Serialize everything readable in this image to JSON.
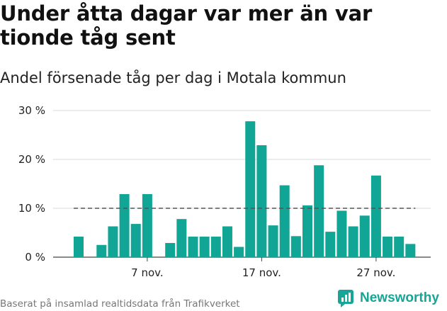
{
  "title": "Under åtta dagar var mer än var tionde tåg sent",
  "subtitle": "Andel försenade tåg per dag i Motala kommun",
  "footer": "Baserat på insamlad realtidsdata från Trafikverket",
  "brand": {
    "name": "Newsworthy",
    "color": "#16a596"
  },
  "chart_data": {
    "type": "bar",
    "x": [
      "1 nov.",
      "2 nov.",
      "3 nov.",
      "4 nov.",
      "5 nov.",
      "6 nov.",
      "7 nov.",
      "8 nov.",
      "9 nov.",
      "10 nov.",
      "11 nov.",
      "12 nov.",
      "13 nov.",
      "14 nov.",
      "15 nov.",
      "16 nov.",
      "17 nov.",
      "18 nov.",
      "19 nov.",
      "20 nov.",
      "21 nov.",
      "22 nov.",
      "23 nov.",
      "24 nov.",
      "25 nov.",
      "26 nov.",
      "27 nov.",
      "28 nov.",
      "29 nov.",
      "30 nov."
    ],
    "values": [
      4.2,
      null,
      2.5,
      6.3,
      12.9,
      6.8,
      12.9,
      null,
      2.9,
      7.8,
      4.2,
      4.2,
      4.2,
      6.3,
      2.1,
      27.8,
      22.9,
      6.5,
      14.7,
      4.3,
      10.6,
      18.8,
      5.2,
      9.5,
      6.3,
      8.5,
      16.7,
      4.2,
      4.2,
      2.7
    ],
    "x_ticks": [
      {
        "index": 6,
        "label": "7 nov."
      },
      {
        "index": 16,
        "label": "17 nov."
      },
      {
        "index": 26,
        "label": "27 nov."
      }
    ],
    "y_ticks": [
      "0 %",
      "10 %",
      "20 %",
      "30 %"
    ],
    "y_tick_values": [
      0,
      10,
      20,
      30
    ],
    "ylim": [
      0,
      30
    ],
    "reference_line": 10,
    "bar_color": "#11a595",
    "grid": true
  }
}
